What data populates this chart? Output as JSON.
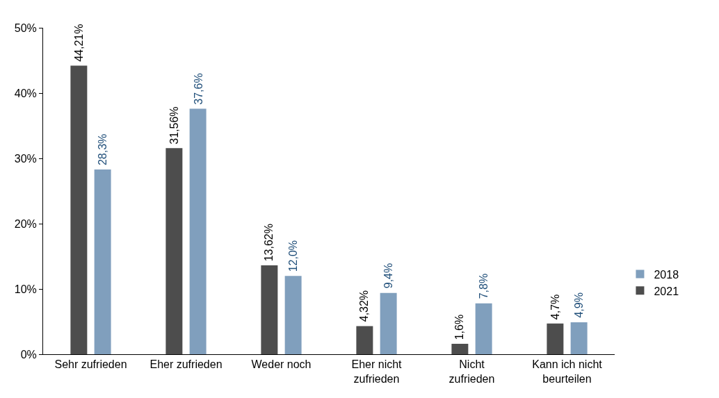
{
  "chart_data": {
    "type": "bar",
    "categories": [
      "Sehr zufrieden",
      "Eher zufrieden",
      "Weder noch",
      "Eher nicht zufrieden",
      "Nicht zufrieden",
      "Kann ich nicht beurteilen"
    ],
    "series": [
      {
        "name": "2021",
        "color": "#4d4d4d",
        "values": [
          44.21,
          31.56,
          13.62,
          4.32,
          1.6,
          4.7
        ],
        "value_labels": [
          "44,21%",
          "31,56%",
          "13,62%",
          "4,32%",
          "1,6%",
          "4,7%"
        ]
      },
      {
        "name": "2018",
        "color": "#809fbd",
        "values": [
          28.3,
          37.6,
          12.0,
          9.4,
          7.8,
          4.9
        ],
        "value_labels": [
          "28,3%",
          "37,6%",
          "12,0%",
          "9,4%",
          "7,8%",
          "4,9%"
        ]
      }
    ],
    "ylim": [
      0,
      50
    ],
    "yticks": [
      {
        "value": 0,
        "label": "0%"
      },
      {
        "value": 10,
        "label": "10%"
      },
      {
        "value": 20,
        "label": "20%"
      },
      {
        "value": 30,
        "label": "30%"
      },
      {
        "value": 40,
        "label": "40%"
      },
      {
        "value": 50,
        "label": "50%"
      }
    ],
    "grid": false,
    "legend": "right"
  }
}
